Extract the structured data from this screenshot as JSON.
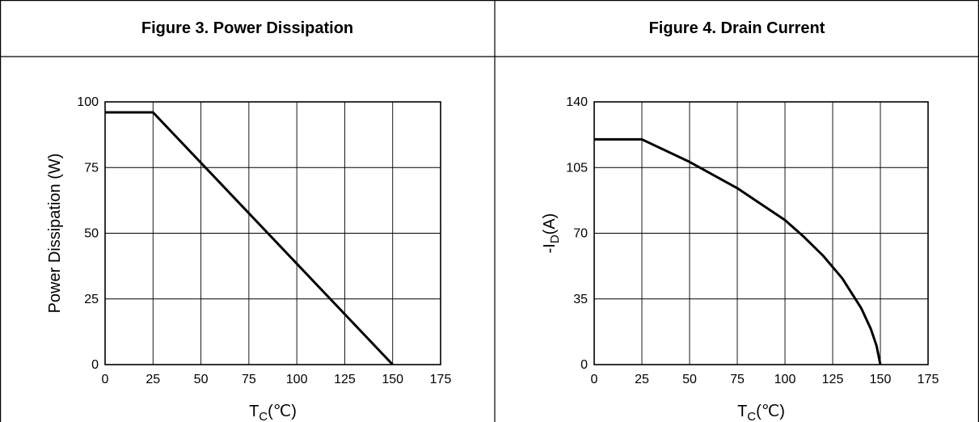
{
  "figures": [
    {
      "title": "Figure 3. Power Dissipation"
    },
    {
      "title": "Figure 4. Drain Current"
    }
  ],
  "chart_data": [
    {
      "type": "line",
      "title": "Figure 3. Power Dissipation",
      "ylabel": "Power Dissipation (W)",
      "xlabel_main": "T",
      "xlabel_sub": "C",
      "xlabel_unit": "(℃)",
      "xlim": [
        0,
        175
      ],
      "ylim": [
        0,
        100
      ],
      "xticks": [
        0,
        25,
        50,
        75,
        100,
        125,
        150,
        175
      ],
      "yticks": [
        0,
        25,
        50,
        75,
        100
      ],
      "grid": true,
      "series": [
        {
          "x": [
            0,
            25,
            150
          ],
          "y": [
            96,
            96,
            0
          ]
        }
      ]
    },
    {
      "type": "line",
      "title": "Figure 4. Drain Current",
      "ylabel_prefix": "-I",
      "ylabel_sub": "D",
      "ylabel_unit": "(A)",
      "xlabel_main": "T",
      "xlabel_sub": "C",
      "xlabel_unit": "(℃)",
      "xlim": [
        0,
        175
      ],
      "ylim": [
        0,
        140
      ],
      "xticks": [
        0,
        25,
        50,
        75,
        100,
        125,
        150,
        175
      ],
      "yticks": [
        0,
        35,
        70,
        105,
        140
      ],
      "grid": true,
      "series": [
        {
          "x": [
            0,
            25,
            50,
            75,
            100,
            110,
            120,
            130,
            140,
            145,
            148,
            150
          ],
          "y": [
            120,
            120,
            108,
            94,
            77,
            68,
            58,
            46,
            30,
            19,
            10,
            0
          ]
        }
      ]
    }
  ]
}
